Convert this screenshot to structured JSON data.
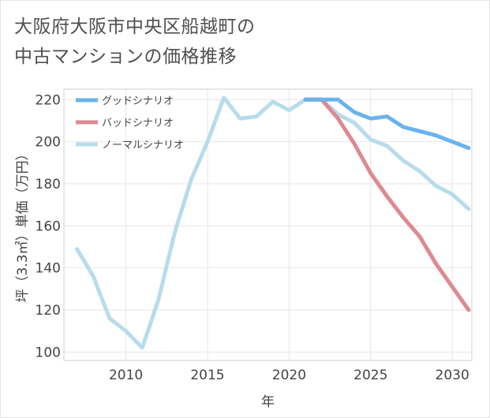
{
  "title": {
    "line1": "大阪府大阪市中央区船越町の",
    "line2": "中古マンションの価格推移"
  },
  "colors": {
    "good": "#6ab3ec",
    "bad": "#dd8a92",
    "normal": "#b7dcec",
    "axis": "#444444",
    "grid": "#e6e6e6",
    "frame": "#d0d0d0"
  },
  "chart_data": {
    "type": "line",
    "title": "大阪府大阪市中央区船越町の中古マンションの価格推移",
    "xlabel": "年",
    "ylabel": "坪（3.3㎡）単価（万円）",
    "xlim": [
      2006.2,
      2031.2
    ],
    "ylim": [
      96,
      225
    ],
    "xticks": [
      2010,
      2015,
      2020,
      2025,
      2030
    ],
    "yticks": [
      100,
      120,
      140,
      160,
      180,
      200,
      220
    ],
    "legend_position": "top-left",
    "series": [
      {
        "name": "グッドシナリオ",
        "color": "#6ab3ec",
        "x": [
          2021,
          2022,
          2023,
          2024,
          2025,
          2026,
          2027,
          2028,
          2029,
          2030,
          2031
        ],
        "values": [
          220,
          220,
          220,
          214,
          211,
          212,
          207,
          205,
          203,
          200,
          197
        ]
      },
      {
        "name": "バッドシナリオ",
        "color": "#dd8a92",
        "x": [
          2021,
          2022,
          2023,
          2024,
          2025,
          2026,
          2027,
          2028,
          2029,
          2030,
          2031
        ],
        "values": [
          220,
          220,
          211,
          199,
          185,
          174,
          164,
          155,
          142,
          131,
          120
        ]
      },
      {
        "name": "ノーマルシナリオ",
        "color": "#b7dcec",
        "x": [
          2007,
          2008,
          2009,
          2010,
          2011,
          2012,
          2013,
          2014,
          2015,
          2016,
          2017,
          2018,
          2019,
          2020,
          2021,
          2022,
          2023,
          2024,
          2025,
          2026,
          2027,
          2028,
          2029,
          2030,
          2031
        ],
        "values": [
          149,
          136,
          116,
          110,
          102,
          125,
          157,
          182,
          200,
          221,
          211,
          212,
          219,
          215,
          220,
          220,
          213,
          209,
          201,
          198,
          191,
          186,
          179,
          175,
          168
        ]
      }
    ]
  }
}
